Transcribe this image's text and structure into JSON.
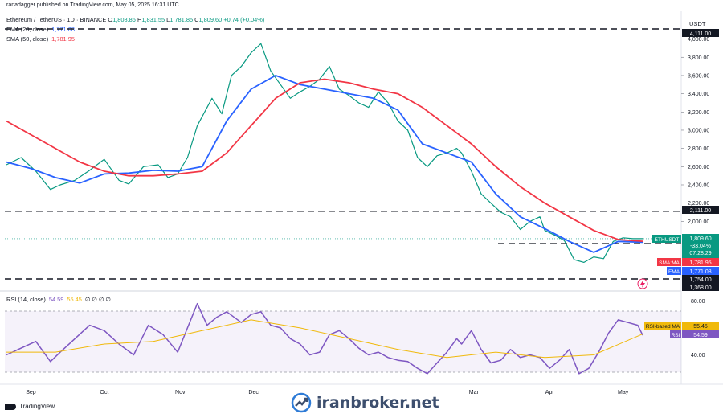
{
  "header": {
    "publisher_line": "ranadagger published on TradingView.com, May 05, 2025 16:31 UTC",
    "symbol": "Ethereum / TetherUS · 1D · BINANCE",
    "ohlc": [
      {
        "k": "O",
        "v": "1,808.86"
      },
      {
        "k": "H",
        "v": "1,831.55"
      },
      {
        "k": "L",
        "v": "1,781.85"
      },
      {
        "k": "C",
        "v": "1,809.60"
      }
    ],
    "change": "+0.74 (+0.04%)",
    "indicators": [
      {
        "label": "EMA (20, close)",
        "value": "1,771.08",
        "color": "#2962ff"
      },
      {
        "label": "SMA (50, close)",
        "value": "1,781.95",
        "color": "#f23645"
      }
    ],
    "rsi_label": "RSI (14, close)",
    "rsi_value": "54.59",
    "rsi_ma_value": "55.45",
    "rsi_zeros": "∅ ∅ ∅ ∅"
  },
  "price_axis": {
    "currency": "USDT",
    "ticks": [
      "4,000.00",
      "3,800.00",
      "3,600.00",
      "3,400.00",
      "3,200.00",
      "3,000.00",
      "2,800.00",
      "2,600.00",
      "2,400.00",
      "2,200.00",
      "2,000.00"
    ],
    "tick_values": [
      4000,
      3800,
      3600,
      3400,
      3200,
      3000,
      2800,
      2600,
      2400,
      2200,
      2000
    ],
    "ylim": [
      1330,
      4180
    ]
  },
  "price_labels": {
    "level_top": "4,111.00",
    "level_2111": "2,111.00",
    "level_1754": "1,754.00",
    "level_1368": "1,368.00",
    "ethusdt_tag": "ETHUSDT",
    "last_price": "1,809.60",
    "last_change": "-33.04%",
    "countdown": "07:28:29",
    "sma_tag": "SMA:MA",
    "sma_value": "1,781.95",
    "ema_tag": "EMA",
    "ema_value": "1,771.08"
  },
  "rsi_axis": {
    "ticks": [
      "80.00",
      "40.00"
    ],
    "tick_values": [
      80,
      40
    ],
    "ylim": [
      20,
      85
    ],
    "ma_tag": "RSI-based MA",
    "ma_value": "55.45",
    "rsi_tag": "RSI",
    "rsi_value": "54.59"
  },
  "time_axis": {
    "labels": [
      "Sep",
      "Oct",
      "Nov",
      "Dec",
      "Mar",
      "Apr",
      "May"
    ],
    "label_days": [
      10,
      40,
      71,
      101,
      191,
      222,
      252
    ]
  },
  "chart_data": {
    "type": "line",
    "title": "Ethereum / TetherUS · 1D · BINANCE",
    "x_unit": "daily candles, day 0 ≈ Aug 22, 2024",
    "x_range": [
      0,
      260
    ],
    "ylim": [
      1330,
      4180
    ],
    "horizontal_levels": [
      4111,
      2111,
      1754,
      1368
    ],
    "series": [
      {
        "name": "ETHUSDT close",
        "color": "#089981",
        "x": [
          0,
          6,
          12,
          18,
          22,
          28,
          34,
          40,
          46,
          50,
          56,
          62,
          66,
          70,
          74,
          78,
          84,
          88,
          92,
          96,
          100,
          104,
          108,
          112,
          116,
          120,
          124,
          128,
          132,
          136,
          140,
          144,
          148,
          152,
          156,
          160,
          164,
          168,
          172,
          176,
          180,
          184,
          186,
          190,
          194,
          198,
          202,
          206,
          210,
          214,
          218,
          220,
          224,
          228,
          232,
          236,
          240,
          244,
          248,
          252,
          256,
          260
        ],
        "y": [
          2620,
          2700,
          2550,
          2350,
          2400,
          2450,
          2560,
          2680,
          2450,
          2410,
          2600,
          2620,
          2480,
          2520,
          2700,
          3050,
          3350,
          3180,
          3600,
          3700,
          3850,
          3950,
          3650,
          3500,
          3350,
          3420,
          3480,
          3560,
          3700,
          3450,
          3380,
          3300,
          3250,
          3420,
          3300,
          3100,
          3000,
          2700,
          2600,
          2720,
          2750,
          2800,
          2750,
          2550,
          2300,
          2200,
          2100,
          2050,
          1910,
          2000,
          2050,
          1900,
          1850,
          1790,
          1580,
          1550,
          1610,
          1590,
          1780,
          1820,
          1810,
          1809.6
        ]
      },
      {
        "name": "EMA 20",
        "color": "#2962ff",
        "x": [
          0,
          10,
          20,
          30,
          40,
          50,
          60,
          70,
          80,
          90,
          100,
          110,
          120,
          130,
          140,
          150,
          160,
          170,
          180,
          190,
          200,
          210,
          220,
          230,
          240,
          250,
          260
        ],
        "y": [
          2650,
          2580,
          2480,
          2420,
          2520,
          2530,
          2560,
          2550,
          2600,
          3100,
          3450,
          3600,
          3500,
          3450,
          3400,
          3350,
          3220,
          2850,
          2750,
          2650,
          2300,
          2050,
          1920,
          1780,
          1660,
          1780,
          1771
        ]
      },
      {
        "name": "SMA 50",
        "color": "#f23645",
        "x": [
          0,
          10,
          20,
          30,
          40,
          50,
          60,
          70,
          80,
          90,
          100,
          110,
          120,
          130,
          140,
          150,
          160,
          170,
          180,
          190,
          200,
          210,
          220,
          230,
          240,
          250,
          260
        ],
        "y": [
          3100,
          2950,
          2800,
          2650,
          2550,
          2500,
          2500,
          2520,
          2550,
          2750,
          3050,
          3350,
          3520,
          3560,
          3520,
          3450,
          3400,
          3250,
          3050,
          2850,
          2600,
          2380,
          2200,
          2050,
          1900,
          1800,
          1782
        ]
      }
    ]
  },
  "rsi_data": {
    "type": "line",
    "ylim": [
      20,
      85
    ],
    "levels": [
      70,
      30
    ],
    "series": [
      {
        "name": "RSI",
        "color": "#7e57c2",
        "x": [
          0,
          6,
          12,
          18,
          22,
          28,
          34,
          40,
          46,
          52,
          58,
          64,
          70,
          74,
          78,
          82,
          86,
          90,
          96,
          100,
          104,
          108,
          112,
          116,
          120,
          124,
          128,
          132,
          136,
          140,
          144,
          148,
          152,
          156,
          160,
          164,
          168,
          172,
          176,
          180,
          184,
          186,
          190,
          194,
          198,
          202,
          206,
          210,
          214,
          218,
          222,
          226,
          230,
          234,
          238,
          242,
          246,
          250,
          254,
          258,
          260
        ],
        "y": [
          40,
          45,
          50,
          35,
          42,
          52,
          62,
          58,
          48,
          40,
          62,
          55,
          42,
          60,
          78,
          62,
          68,
          72,
          64,
          70,
          72,
          62,
          60,
          52,
          48,
          40,
          42,
          55,
          58,
          52,
          45,
          40,
          42,
          38,
          36,
          35,
          30,
          26,
          34,
          42,
          52,
          48,
          58,
          44,
          34,
          36,
          44,
          38,
          40,
          38,
          30,
          36,
          44,
          26,
          30,
          42,
          56,
          66,
          64,
          62,
          54.59
        ]
      },
      {
        "name": "RSI-based MA",
        "color": "#f0b90b",
        "x": [
          0,
          20,
          40,
          60,
          80,
          100,
          120,
          140,
          160,
          180,
          200,
          220,
          240,
          260
        ],
        "y": [
          42,
          42,
          48,
          50,
          58,
          66,
          60,
          52,
          44,
          38,
          42,
          38,
          40,
          55.45
        ]
      }
    ]
  },
  "watermark": {
    "text": "iranbroker.net",
    "icon": "chart-arrow-circle-icon"
  },
  "footer": {
    "brand": "TradingView",
    "icon": "tradingview-logo-icon"
  },
  "colors": {
    "up": "#089981",
    "down": "#f23645",
    "ema": "#2962ff",
    "sma": "#f23645",
    "rsi": "#7e57c2",
    "rsi_ma": "#f0b90b",
    "level": "#131722"
  }
}
